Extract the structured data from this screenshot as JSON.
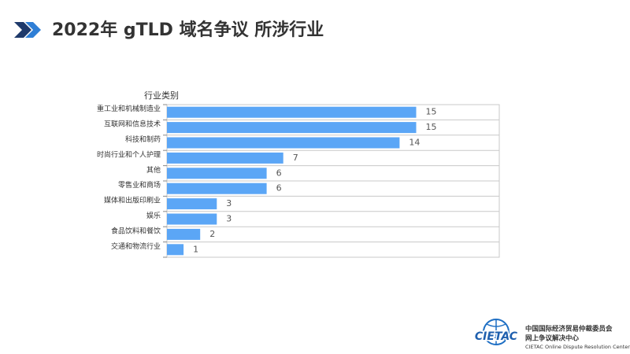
{
  "chart_data": {
    "type": "barh",
    "title": "2022年 gTLD 域名争议 所涉行业",
    "y_label": "行业类别",
    "categories": [
      "重工业和机械制造业",
      "互联网和信息技术",
      "科技和制药",
      "时尚行业和个人护理",
      "其他",
      "零售业和商场",
      "媒体和出版印刷业",
      "娱乐",
      "食品饮料和餐饮",
      "交通和物流行业"
    ],
    "values": [
      15,
      15,
      14,
      7,
      6,
      6,
      3,
      3,
      2,
      1
    ],
    "color": "#5ba6f6",
    "xlim": [
      0,
      20
    ]
  },
  "logo": {
    "mark": "CIETAC",
    "name_cn": "中国国际经济贸易仲裁委员会",
    "sub_cn": "网上争议解决中心",
    "name_en": "CIETAC Online Dispute Resolution Center"
  }
}
